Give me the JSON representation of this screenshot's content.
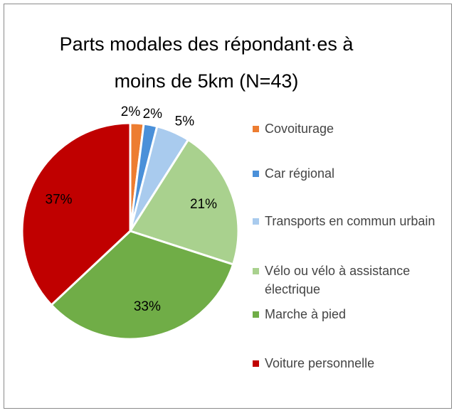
{
  "chart_data": {
    "type": "pie",
    "title": "Parts modales des répondant·es à moins de 5km (N=43)",
    "categories": [
      "Covoiturage",
      "Car régional",
      "Transports en commun urbain",
      "Vélo ou vélo à assistance électrique",
      "Marche à pied",
      "Voiture personnelle"
    ],
    "values": [
      2,
      2,
      5,
      21,
      33,
      37
    ],
    "value_labels": [
      "2%",
      "2%",
      "5%",
      "21%",
      "33%",
      "37%"
    ],
    "colors": [
      "#ed7d31",
      "#4a90d9",
      "#a9cbee",
      "#a9d18e",
      "#70ad47",
      "#c00000"
    ],
    "legend": "right"
  }
}
